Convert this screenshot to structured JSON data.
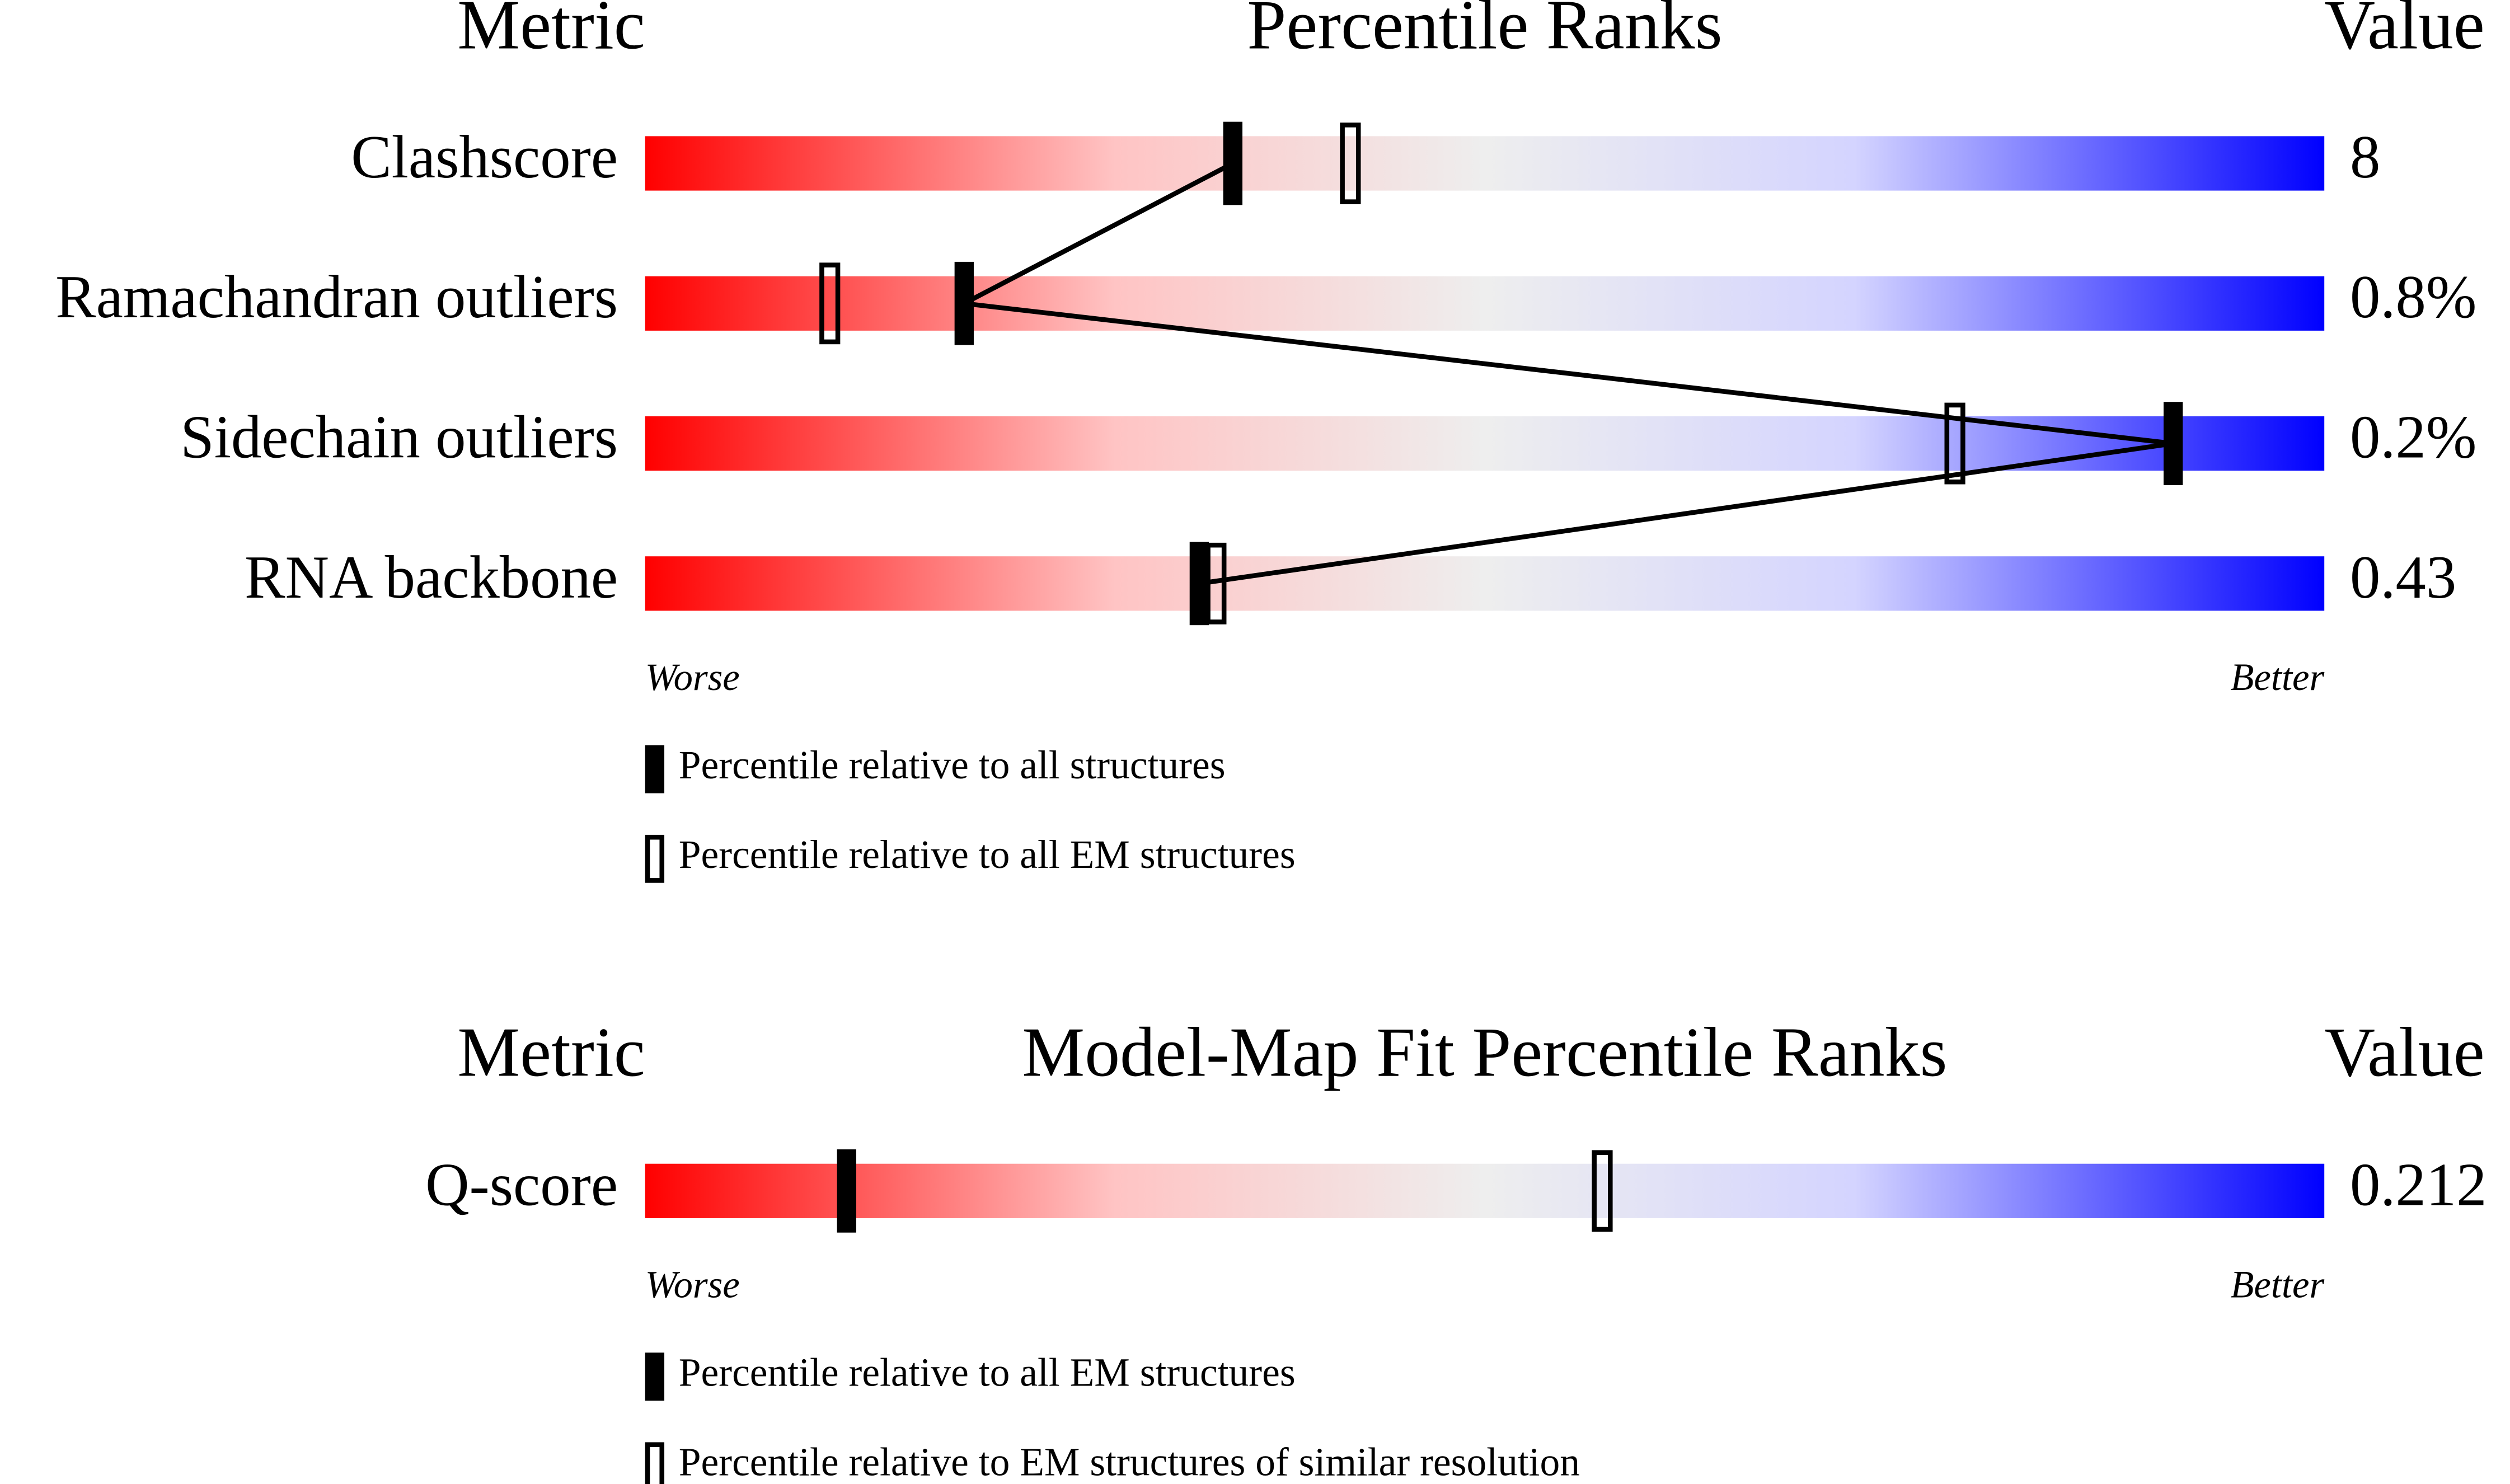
{
  "chart_data": [
    {
      "type": "percentile-slider",
      "headers": {
        "metric": "Metric",
        "title": "Percentile Ranks",
        "value": "Value"
      },
      "categories": [
        "Clashscore",
        "Ramachandran outliers",
        "Sidechain outliers",
        "RNA backbone"
      ],
      "value_texts": [
        "8",
        "0.8%",
        "0.2%",
        "0.43"
      ],
      "series": [
        {
          "name": "Percentile relative to all structures",
          "color": "#000000",
          "marker": "filled",
          "values": [
            35,
            19,
            91,
            33
          ]
        },
        {
          "name": "Percentile relative to all EM structures",
          "color": "#000000",
          "marker": "open",
          "values": [
            42,
            11,
            78,
            34
          ]
        }
      ],
      "xlim": [
        0,
        100
      ],
      "connect": true,
      "worse": "Worse",
      "better": "Better"
    },
    {
      "type": "percentile-slider",
      "headers": {
        "metric": "Metric",
        "title": "Model-Map Fit Percentile Ranks",
        "value": "Value"
      },
      "categories": [
        "Q-score"
      ],
      "value_texts": [
        "0.212"
      ],
      "series": [
        {
          "name": "Percentile relative to all EM structures",
          "color": "#000000",
          "marker": "filled",
          "values": [
            12
          ]
        },
        {
          "name": "Percentile relative to EM structures of similar resolution",
          "color": "#000000",
          "marker": "open",
          "values": [
            57
          ]
        }
      ],
      "xlim": [
        0,
        100
      ],
      "connect": true,
      "worse": "Worse",
      "better": "Better"
    }
  ]
}
